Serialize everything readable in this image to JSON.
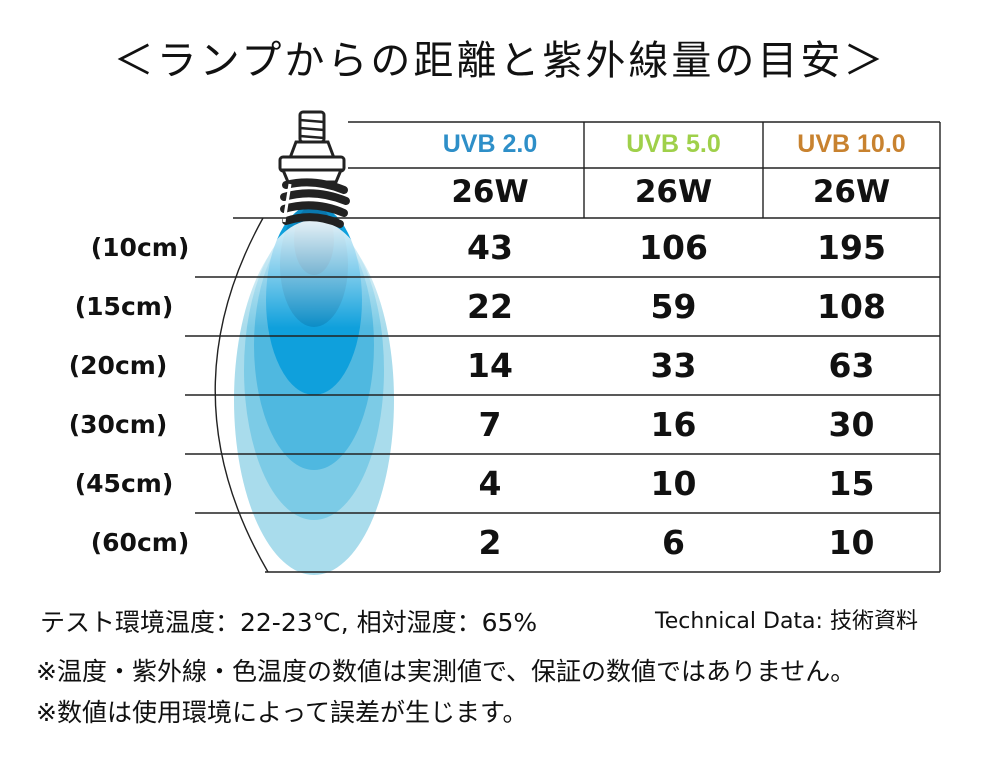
{
  "title": "＜ランプからの距離と紫外線量の目安＞",
  "chart_data": {
    "type": "table",
    "columns": [
      {
        "label": "UVB 2.0",
        "color": "#2e8fc8"
      },
      {
        "label": "UVB 5.0",
        "color": "#9fd04a"
      },
      {
        "label": "UVB 10.0",
        "color": "#c8822f"
      }
    ],
    "wattage": [
      "26W",
      "26W",
      "26W"
    ],
    "rows": [
      {
        "label": "(10cm)",
        "values": [
          "43",
          "106",
          "195"
        ]
      },
      {
        "label": "(15cm)",
        "values": [
          "22",
          "59",
          "108"
        ]
      },
      {
        "label": "(20cm)",
        "values": [
          "14",
          "33",
          "63"
        ]
      },
      {
        "label": "(30cm)",
        "values": [
          "7",
          "16",
          "30"
        ]
      },
      {
        "label": "(45cm)",
        "values": [
          "4",
          "10",
          "15"
        ]
      },
      {
        "label": "(60cm)",
        "values": [
          "2",
          "6",
          "10"
        ]
      }
    ]
  },
  "conditions": "テスト環境温度：22-23℃, 相対湿度：65%",
  "technical_data": "Technical Data: 技術資料",
  "notes": [
    "※温度・紫外線・色温度の数値は実測値で、保証の数値ではありません。",
    "※数値は使用環境によって誤差が生じます。"
  ],
  "illustration": {
    "icon": "uv-lamp-bulb-icon",
    "beam_color": "#0aa0dc"
  }
}
